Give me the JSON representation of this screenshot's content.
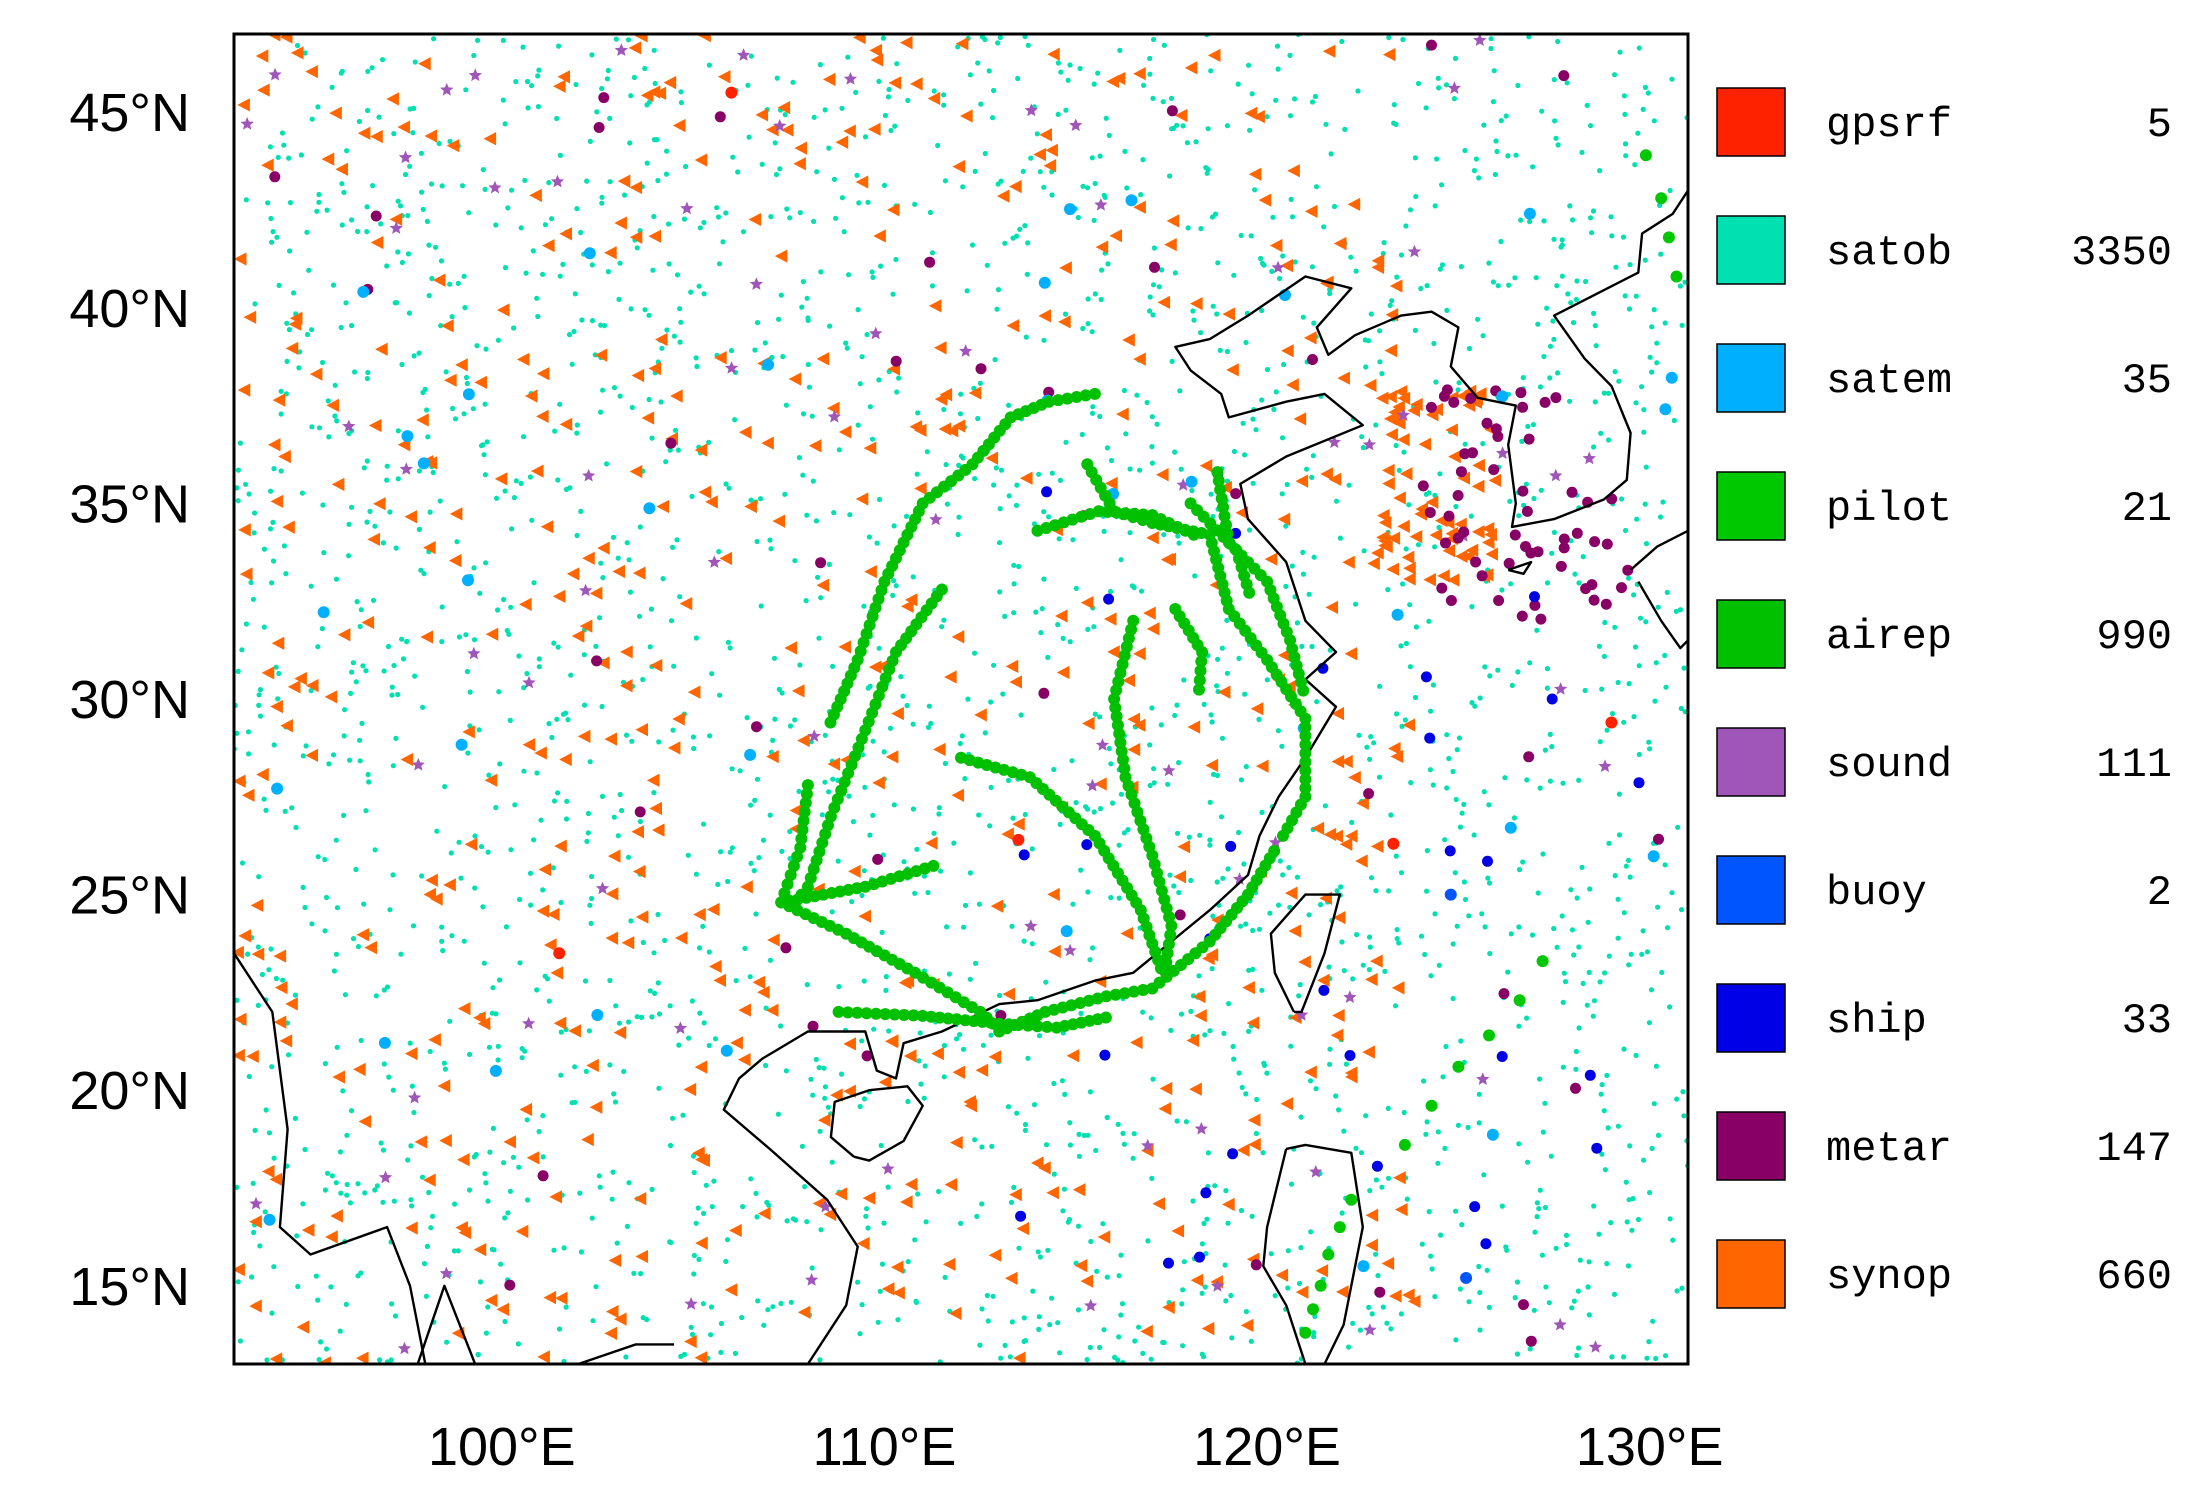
{
  "map": {
    "lon_range": [
      93,
      131
    ],
    "lat_range": [
      13,
      47
    ],
    "projection": "equirectangular",
    "frame": true,
    "x_tick_labels": [
      {
        "value": 100,
        "label": "100°E"
      },
      {
        "value": 110,
        "label": "110°E"
      },
      {
        "value": 120,
        "label": "120°E"
      },
      {
        "value": 130,
        "label": "130°E"
      }
    ],
    "y_tick_labels": [
      {
        "value": 45,
        "label": "45°N"
      },
      {
        "value": 40,
        "label": "40°N"
      },
      {
        "value": 35,
        "label": "35°N"
      },
      {
        "value": 30,
        "label": "30°N"
      },
      {
        "value": 25,
        "label": "25°N"
      },
      {
        "value": 20,
        "label": "20°N"
      },
      {
        "value": 15,
        "label": "15°N"
      }
    ],
    "basemap": "coastlines"
  },
  "legend": {
    "placement": "right",
    "items": [
      {
        "name": "gpsrf",
        "count": "5",
        "color": "#ff2200",
        "marker": "circle"
      },
      {
        "name": "satob",
        "count": "3350",
        "color": "#00e0b0",
        "marker": "dot"
      },
      {
        "name": "satem",
        "count": "35",
        "color": "#00b0ff",
        "marker": "circle"
      },
      {
        "name": "pilot",
        "count": "21",
        "color": "#00c800",
        "marker": "circle"
      },
      {
        "name": "airep",
        "count": "990",
        "color": "#00c000",
        "marker": "circle"
      },
      {
        "name": "sound",
        "count": "111",
        "color": "#a055b8",
        "marker": "star"
      },
      {
        "name": "buoy",
        "count": "2",
        "color": "#0055ff",
        "marker": "circle"
      },
      {
        "name": "ship",
        "count": "33",
        "color": "#0000e6",
        "marker": "circle"
      },
      {
        "name": "metar",
        "count": "147",
        "color": "#880066",
        "marker": "circle"
      },
      {
        "name": "synop",
        "count": "660",
        "color": "#ff6600",
        "marker": "triangle"
      }
    ]
  },
  "observations": {
    "airep_tracks": [
      [
        [
          115.5,
          37.8
        ],
        [
          114.3,
          37.6
        ],
        [
          113.3,
          37.2
        ],
        [
          112.3,
          36.0
        ],
        [
          111.0,
          35.0
        ],
        [
          110.0,
          33.0
        ],
        [
          109.3,
          31.0
        ],
        [
          108.5,
          29.2
        ]
      ],
      [
        [
          111.5,
          32.8
        ],
        [
          110.3,
          31.2
        ],
        [
          109.5,
          29.2
        ],
        [
          108.6,
          27.0
        ],
        [
          108.0,
          25.2
        ],
        [
          107.5,
          24.6
        ]
      ],
      [
        [
          108.0,
          27.8
        ],
        [
          107.8,
          26.2
        ],
        [
          107.3,
          24.8
        ],
        [
          109.5,
          25.2
        ],
        [
          111.5,
          25.8
        ]
      ],
      [
        [
          107.3,
          24.8
        ],
        [
          109.0,
          24.0
        ],
        [
          110.8,
          23.0
        ],
        [
          112.5,
          22.0
        ],
        [
          113.2,
          21.4
        ]
      ],
      [
        [
          108.8,
          22.0
        ],
        [
          111.0,
          21.9
        ],
        [
          113.0,
          21.7
        ],
        [
          114.5,
          21.6
        ],
        [
          116.0,
          21.9
        ]
      ],
      [
        [
          113.0,
          21.5
        ],
        [
          114.2,
          22.0
        ],
        [
          115.8,
          22.4
        ],
        [
          117.0,
          22.6
        ],
        [
          118.5,
          23.8
        ],
        [
          119.5,
          25.0
        ],
        [
          120.3,
          26.3
        ]
      ],
      [
        [
          115.3,
          36.0
        ],
        [
          116.0,
          34.8
        ],
        [
          117.0,
          34.5
        ],
        [
          118.5,
          34.2
        ],
        [
          119.0,
          32.3
        ],
        [
          120.0,
          31.0
        ],
        [
          121.0,
          29.5
        ],
        [
          121.0,
          27.5
        ],
        [
          120.3,
          26.3
        ]
      ],
      [
        [
          116.5,
          32.0
        ],
        [
          116.0,
          30.0
        ],
        [
          116.3,
          28.0
        ],
        [
          117.0,
          26.0
        ],
        [
          117.5,
          24.2
        ],
        [
          117.3,
          22.8
        ]
      ],
      [
        [
          118.7,
          35.8
        ],
        [
          119.0,
          34.0
        ],
        [
          120.0,
          33.0
        ],
        [
          120.6,
          31.5
        ],
        [
          121.0,
          30.0
        ]
      ],
      [
        [
          114.0,
          34.3
        ],
        [
          115.6,
          34.8
        ],
        [
          117.0,
          34.7
        ],
        [
          118.3,
          34.1
        ]
      ],
      [
        [
          117.6,
          32.3
        ],
        [
          118.3,
          31.2
        ],
        [
          118.2,
          30.0
        ]
      ],
      [
        [
          112.0,
          28.5
        ],
        [
          113.8,
          28.0
        ],
        [
          115.5,
          26.5
        ],
        [
          116.7,
          24.6
        ],
        [
          117.3,
          22.9
        ]
      ],
      [
        [
          118.0,
          35.0
        ],
        [
          119.2,
          33.8
        ],
        [
          119.6,
          32.5
        ]
      ]
    ],
    "pilot_points": [
      [
        122.2,
        17.2
      ],
      [
        121.9,
        16.5
      ],
      [
        121.6,
        15.8
      ],
      [
        121.4,
        15.0
      ],
      [
        121.2,
        14.4
      ],
      [
        121.0,
        13.8
      ],
      [
        129.9,
        43.9
      ],
      [
        130.3,
        42.8
      ],
      [
        130.5,
        41.8
      ],
      [
        130.7,
        40.8
      ],
      [
        127.2,
        23.3
      ],
      [
        126.6,
        22.3
      ],
      [
        125.8,
        21.4
      ],
      [
        125.0,
        20.6
      ],
      [
        124.3,
        19.6
      ],
      [
        123.6,
        18.6
      ]
    ]
  }
}
